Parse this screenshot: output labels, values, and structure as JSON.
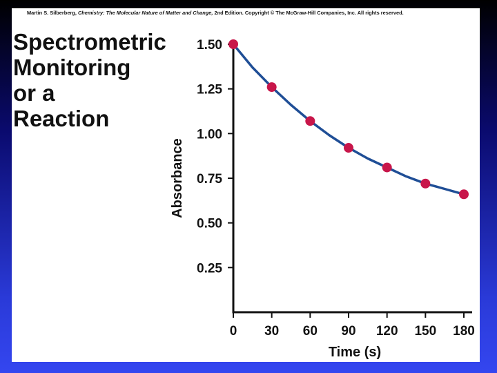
{
  "slide": {
    "copyright": {
      "author": "Martin S. Silberberg,",
      "book": "Chemistry: The Molecular Nature of Matter and Change,",
      "edition": "2nd Edition.",
      "notice": "Copyright © The McGraw-Hill Companies, Inc. All rights reserved."
    },
    "title_lines": [
      "Spectrometric",
      "Monitoring",
      "or a",
      "Reaction"
    ]
  },
  "colors": {
    "curve": "#1f4e96",
    "points": "#c8164a",
    "axis": "#111111",
    "slide_background": "#ffffff"
  },
  "chart_data": {
    "type": "scatter",
    "xlabel": "Time (s)",
    "ylabel": "Absorbance",
    "xlim": [
      0,
      180
    ],
    "ylim": [
      0,
      1.5
    ],
    "x_ticks": [
      "0",
      "30",
      "60",
      "90",
      "120",
      "150",
      "180"
    ],
    "y_ticks": [
      "0.25",
      "0.50",
      "0.75",
      "1.00",
      "1.25",
      "1.50"
    ],
    "series": [
      {
        "points": [
          {
            "x": 0,
            "y": 1.5
          },
          {
            "x": 30,
            "y": 1.26
          },
          {
            "x": 60,
            "y": 1.07
          },
          {
            "x": 90,
            "y": 0.92
          },
          {
            "x": 120,
            "y": 0.81
          },
          {
            "x": 150,
            "y": 0.72
          },
          {
            "x": 180,
            "y": 0.66
          }
        ]
      }
    ],
    "fit_curve": {
      "x": [
        0,
        15,
        30,
        45,
        60,
        75,
        90,
        105,
        120,
        135,
        150,
        165,
        180
      ],
      "y": [
        1.5,
        1.37,
        1.26,
        1.16,
        1.07,
        0.99,
        0.92,
        0.86,
        0.81,
        0.76,
        0.72,
        0.69,
        0.66
      ]
    },
    "grid": false,
    "legend": "none"
  }
}
